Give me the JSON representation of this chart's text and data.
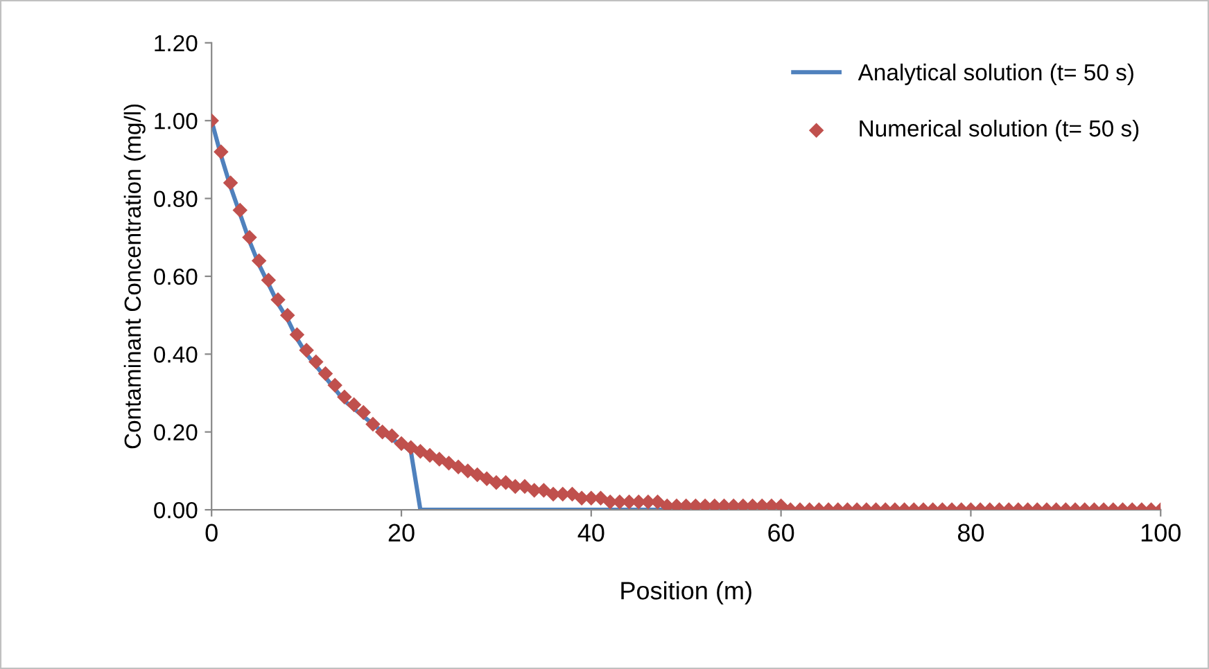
{
  "chart_data": {
    "type": "line",
    "xlabel": "Position (m)",
    "ylabel": "Contaminant Concentration (mg/l)",
    "xlim": [
      0,
      100
    ],
    "xticks": [
      0,
      20,
      40,
      60,
      80,
      100
    ],
    "ylim": [
      0,
      1.2
    ],
    "yticks": [
      {
        "value": 0,
        "label": "0.00"
      },
      {
        "value": 0.2,
        "label": "0.20"
      },
      {
        "value": 0.4,
        "label": "0.40"
      },
      {
        "value": 0.6,
        "label": "0.60"
      },
      {
        "value": 0.8,
        "label": "0.80"
      },
      {
        "value": 1.0,
        "label": "1.00"
      },
      {
        "value": 1.2,
        "label": "1.20"
      }
    ],
    "grid": false,
    "legend": "top right",
    "series": [
      {
        "name": "Analytical solution (t= 50 s)",
        "color": "#4f81bd",
        "marker": "none",
        "line_style": "solid",
        "x": [
          0,
          1,
          2,
          3,
          4,
          5,
          6,
          7,
          8,
          9,
          10,
          11,
          12,
          13,
          14,
          15,
          16,
          17,
          18,
          19,
          20,
          21,
          22,
          100
        ],
        "values": [
          1.0,
          0.91,
          0.83,
          0.76,
          0.69,
          0.63,
          0.58,
          0.53,
          0.49,
          0.44,
          0.4,
          0.37,
          0.34,
          0.31,
          0.28,
          0.26,
          0.24,
          0.22,
          0.2,
          0.18,
          0.17,
          0.15,
          0.0,
          0.0
        ]
      },
      {
        "name": "Numerical solution (t= 50 s)",
        "type": "scatter",
        "color": "#c0504d",
        "marker": "diamond",
        "x": [
          0,
          1,
          2,
          3,
          4,
          5,
          6,
          7,
          8,
          9,
          10,
          11,
          12,
          13,
          14,
          15,
          16,
          17,
          18,
          19,
          20,
          21,
          22,
          23,
          24,
          25,
          26,
          27,
          28,
          29,
          30,
          31,
          32,
          33,
          34,
          35,
          36,
          37,
          38,
          39,
          40,
          41,
          42,
          43,
          44,
          45,
          46,
          47,
          48,
          49,
          50,
          51,
          52,
          53,
          54,
          55,
          56,
          57,
          58,
          59,
          60,
          61,
          62,
          63,
          64,
          65,
          66,
          67,
          68,
          69,
          70,
          71,
          72,
          73,
          74,
          75,
          76,
          77,
          78,
          79,
          80,
          81,
          82,
          83,
          84,
          85,
          86,
          87,
          88,
          89,
          90,
          91,
          92,
          93,
          94,
          95,
          96,
          97,
          98,
          99,
          100
        ],
        "values": [
          1.0,
          0.92,
          0.84,
          0.77,
          0.7,
          0.64,
          0.59,
          0.54,
          0.5,
          0.45,
          0.41,
          0.38,
          0.35,
          0.32,
          0.29,
          0.27,
          0.25,
          0.22,
          0.2,
          0.19,
          0.17,
          0.16,
          0.15,
          0.14,
          0.13,
          0.12,
          0.11,
          0.1,
          0.09,
          0.08,
          0.07,
          0.07,
          0.06,
          0.06,
          0.05,
          0.05,
          0.04,
          0.04,
          0.04,
          0.03,
          0.03,
          0.03,
          0.02,
          0.02,
          0.02,
          0.02,
          0.02,
          0.02,
          0.01,
          0.01,
          0.01,
          0.01,
          0.01,
          0.01,
          0.01,
          0.01,
          0.01,
          0.01,
          0.01,
          0.01,
          0.01,
          0.0,
          0.0,
          0.0,
          0.0,
          0.0,
          0.0,
          0.0,
          0.0,
          0.0,
          0.0,
          0.0,
          0.0,
          0.0,
          0.0,
          0.0,
          0.0,
          0.0,
          0.0,
          0.0,
          0.0,
          0.0,
          0.0,
          0.0,
          0.0,
          0.0,
          0.0,
          0.0,
          0.0,
          0.0,
          0.0,
          0.0,
          0.0,
          0.0,
          0.0,
          0.0,
          0.0,
          0.0,
          0.0,
          0.0,
          0.0
        ]
      }
    ]
  }
}
